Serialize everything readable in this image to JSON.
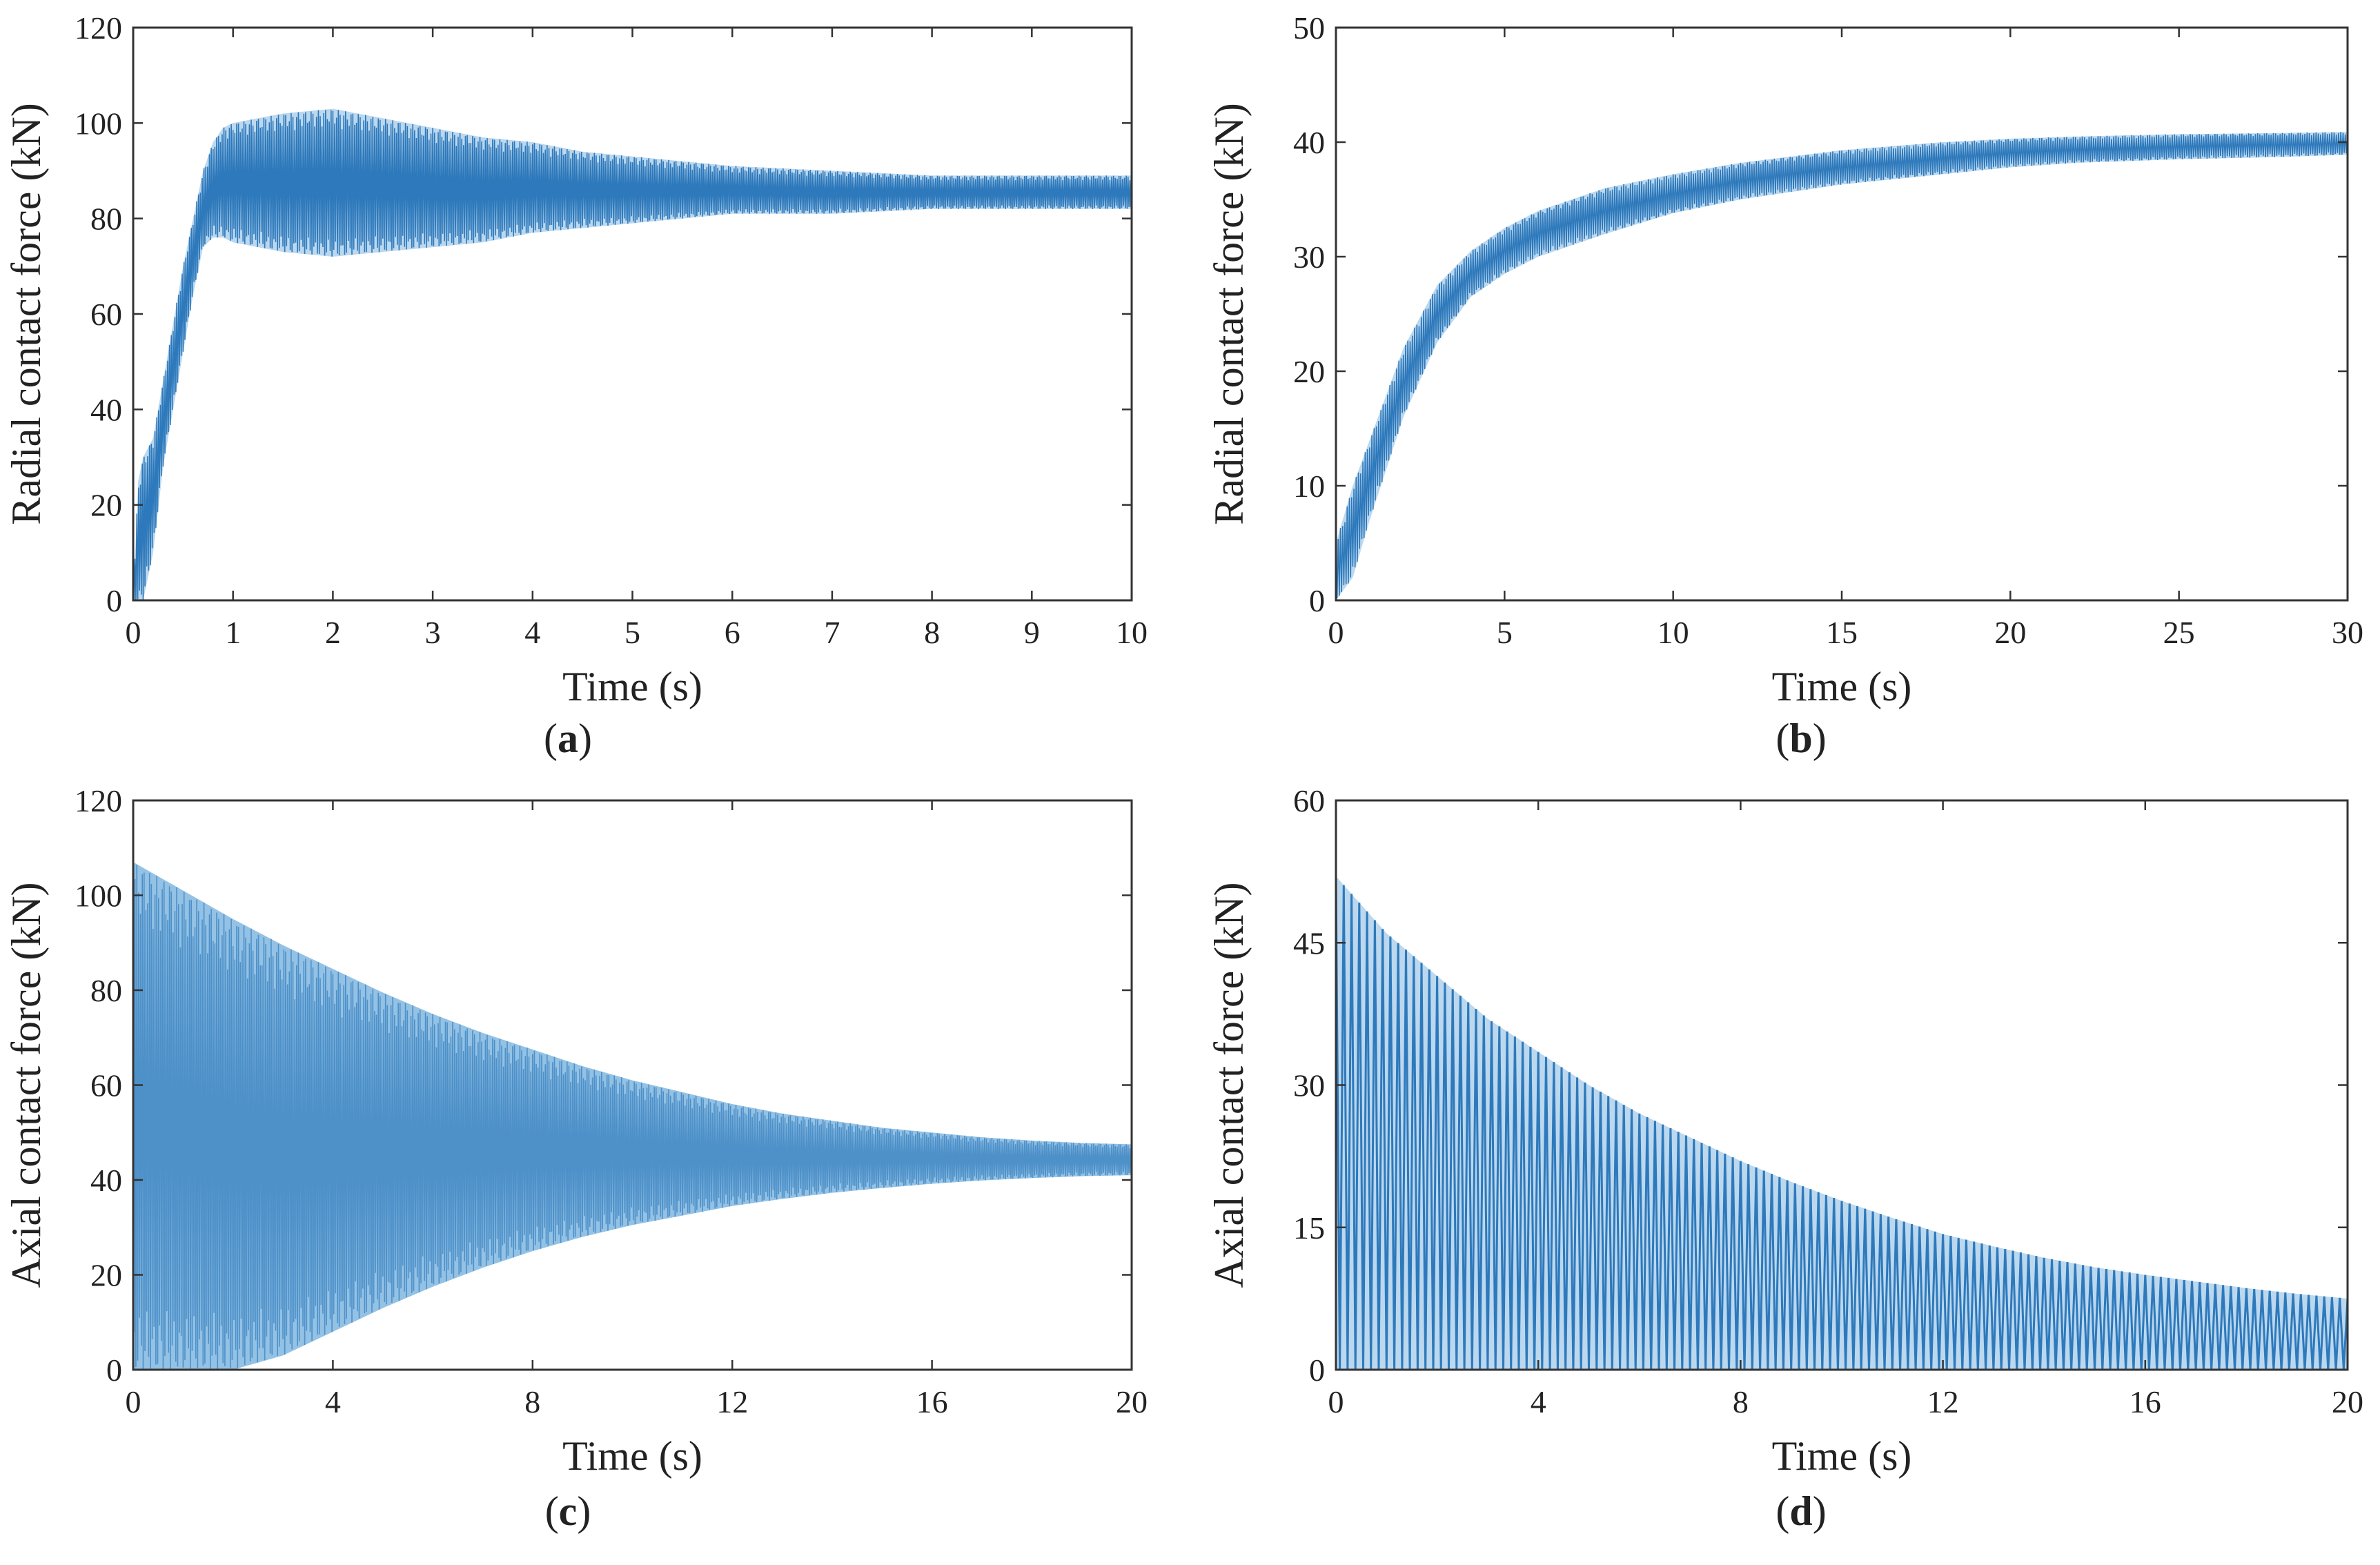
{
  "figure": {
    "line_color": "#1f6fb5",
    "line_color_light": "#3d8fd0",
    "axis_color": "#333333"
  },
  "chart_data": [
    {
      "id": "a",
      "panel_label": "a",
      "type": "line",
      "title": "",
      "xlabel": "Time (s)",
      "ylabel": "Radial contact force (kN)",
      "xlim": [
        0,
        10
      ],
      "ylim": [
        0,
        120
      ],
      "xticks": [
        0,
        1,
        2,
        3,
        4,
        5,
        6,
        7,
        8,
        9,
        10
      ],
      "yticks": [
        0,
        20,
        40,
        60,
        80,
        100,
        120
      ],
      "grid": false,
      "series": [
        {
          "name": "Radial contact force",
          "description": "oscillating signal (envelope)",
          "x": [
            0,
            0.05,
            0.1,
            0.2,
            0.3,
            0.4,
            0.5,
            0.6,
            0.7,
            0.8,
            0.9,
            1.0,
            1.5,
            2.0,
            2.5,
            3.0,
            3.5,
            4.0,
            4.5,
            5.0,
            5.5,
            6.0,
            7.0,
            8.0,
            9.0,
            10.0
          ],
          "mean": [
            0,
            8,
            15,
            25,
            38,
            50,
            62,
            72,
            82,
            86,
            88,
            88,
            87,
            87,
            87,
            86,
            86,
            86,
            86,
            85,
            85,
            85,
            85,
            85,
            85,
            85
          ],
          "upper": [
            0,
            25,
            30,
            34,
            46,
            58,
            70,
            80,
            90,
            96,
            99,
            100,
            102,
            103,
            101,
            99,
            97,
            96,
            94,
            93,
            92,
            91,
            90,
            89,
            89,
            89
          ],
          "lower": [
            0,
            0,
            0,
            10,
            28,
            40,
            52,
            64,
            74,
            76,
            76,
            75,
            73,
            72,
            73,
            74,
            75,
            77,
            78,
            79,
            80,
            81,
            81,
            82,
            82,
            82
          ]
        }
      ]
    },
    {
      "id": "b",
      "panel_label": "b",
      "type": "line",
      "title": "",
      "xlabel": "Time (s)",
      "ylabel": "Radial contact force (kN)",
      "xlim": [
        0,
        30
      ],
      "ylim": [
        0,
        50
      ],
      "xticks": [
        0,
        5,
        10,
        15,
        20,
        25,
        30
      ],
      "yticks": [
        0,
        10,
        20,
        30,
        40,
        50
      ],
      "grid": false,
      "series": [
        {
          "name": "Radial contact force",
          "description": "oscillating signal (envelope)",
          "x": [
            0,
            0.5,
            1,
            2,
            3,
            4,
            5,
            6,
            8,
            10,
            12,
            15,
            18,
            20,
            22,
            25,
            28,
            30
          ],
          "mean": [
            0,
            6,
            11,
            19,
            25,
            28.5,
            30.5,
            32,
            34,
            35.5,
            36.5,
            37.8,
            38.6,
            39,
            39.3,
            39.6,
            39.8,
            39.9
          ],
          "upper": [
            5,
            10,
            14,
            22,
            27.5,
            30.5,
            32.5,
            34,
            36,
            37.2,
            38.2,
            39.3,
            40,
            40.3,
            40.5,
            40.7,
            40.8,
            40.9
          ],
          "lower": [
            0,
            2,
            7,
            16,
            22.5,
            26.5,
            28.5,
            30,
            32,
            33.8,
            35,
            36.3,
            37.2,
            37.8,
            38.2,
            38.5,
            38.7,
            38.9
          ]
        }
      ]
    },
    {
      "id": "c",
      "panel_label": "c",
      "type": "line",
      "title": "",
      "xlabel": "Time (s)",
      "ylabel": "Axial contact force (kN)",
      "xlim": [
        0,
        20
      ],
      "ylim": [
        0,
        120
      ],
      "xticks": [
        0,
        4,
        8,
        12,
        16,
        20
      ],
      "yticks": [
        0,
        20,
        40,
        60,
        80,
        100,
        120
      ],
      "grid": false,
      "series": [
        {
          "name": "Axial contact force",
          "description": "decaying oscillation (envelope)",
          "x": [
            0,
            1,
            2,
            3,
            4,
            5,
            6,
            7,
            8,
            9,
            10,
            11,
            12,
            13,
            14,
            15,
            16,
            17,
            18,
            19,
            20
          ],
          "upper": [
            107,
            101,
            95,
            89.5,
            84.5,
            79.5,
            75,
            71,
            67.5,
            64,
            61,
            58.5,
            56,
            54,
            52.5,
            51,
            50,
            49,
            48.3,
            47.8,
            47.5
          ],
          "lower": [
            0,
            0,
            0,
            3,
            8,
            13,
            17.5,
            21.5,
            25,
            28,
            30.5,
            32.5,
            34.5,
            36,
            37.3,
            38.3,
            39.2,
            39.9,
            40.4,
            40.8,
            41
          ]
        }
      ]
    },
    {
      "id": "d",
      "panel_label": "d",
      "type": "line",
      "title": "",
      "xlabel": "Time (s)",
      "ylabel": "Axial contact force (kN)",
      "xlim": [
        0,
        20
      ],
      "ylim": [
        0,
        60
      ],
      "xticks": [
        0,
        4,
        8,
        12,
        16,
        20
      ],
      "yticks": [
        0,
        15,
        30,
        45,
        60
      ],
      "grid": false,
      "series": [
        {
          "name": "Axial contact force",
          "description": "decaying spikes (envelope)",
          "x": [
            0,
            1,
            2,
            3,
            4,
            5,
            6,
            7,
            8,
            9,
            10,
            11,
            12,
            13,
            14,
            15,
            16,
            17,
            18,
            19,
            20
          ],
          "upper": [
            52,
            46,
            41.5,
            37,
            33.5,
            30,
            27,
            24.5,
            22,
            19.8,
            17.8,
            16,
            14.3,
            13,
            11.8,
            10.8,
            10,
            9.3,
            8.6,
            8,
            7.5
          ],
          "lower": [
            0,
            0,
            0,
            0,
            0,
            0,
            0,
            0,
            0,
            0,
            0,
            0,
            0,
            0,
            0,
            0,
            0,
            0,
            0,
            0,
            0
          ]
        }
      ]
    }
  ]
}
